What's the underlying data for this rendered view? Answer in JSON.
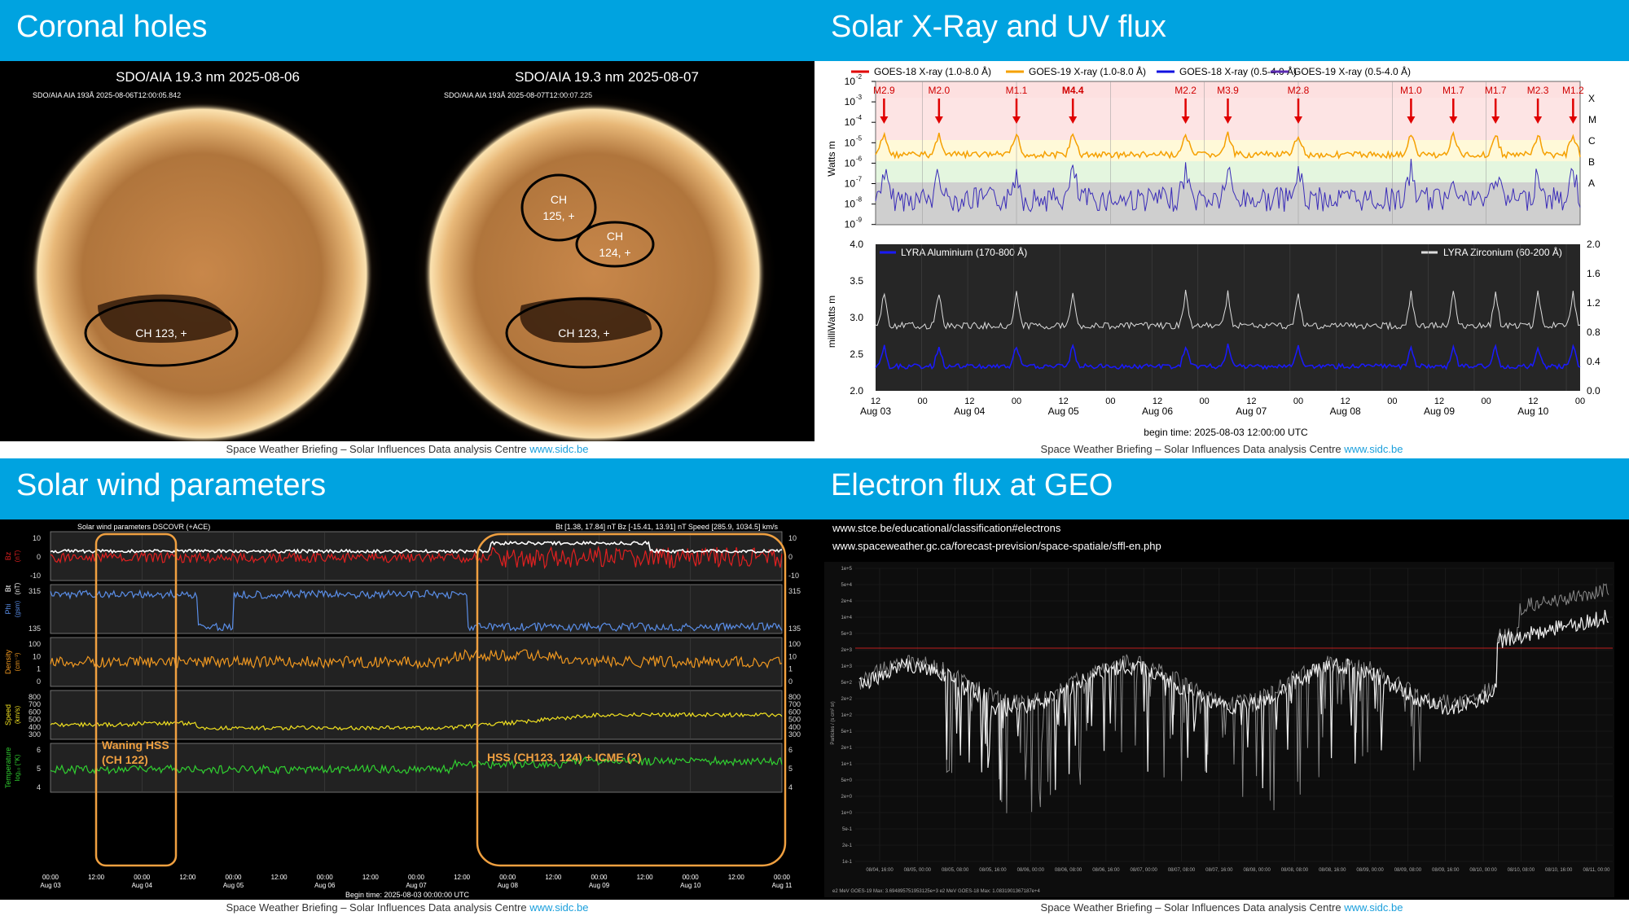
{
  "footer": {
    "text": "Space Weather Briefing – Solar Influences Data analysis Centre ",
    "link": "www.sidc.be"
  },
  "coronal": {
    "title": "Coronal holes",
    "left": {
      "title": "SDO/AIA 19.3 nm 2025-08-06",
      "stamp": "SDO/AIA AIA 193Å 2025-08-06T12:00:05.842",
      "labels": [
        "CH 123, +"
      ]
    },
    "right": {
      "title": "SDO/AIA 19.3 nm 2025-08-07",
      "stamp": "SDO/AIA AIA 193Å 2025-08-07T12:00:07.225",
      "labels": [
        "CH",
        "125, +",
        "CH",
        "124, +",
        "CH 123, +"
      ]
    }
  },
  "xray": {
    "title": "Solar X-Ray and UV flux",
    "legend": [
      "GOES-18 X-ray (1.0-8.0 Å)",
      "GOES-19 X-ray (1.0-8.0 Å)",
      "GOES-18 X-ray (0.5-4.0 Å)",
      "GOES-19 X-ray (0.5-4.0 Å)"
    ],
    "legend_colors": [
      "#e00000",
      "#f5a000",
      "#1010e0",
      "#5a2ab0"
    ],
    "flares": [
      "M2.9",
      "M2.0",
      "M1.1",
      "M4.4",
      "M2.2",
      "M3.9",
      "M2.8",
      "M1.0",
      "M1.7",
      "M1.7",
      "M2.3",
      "M1.2"
    ],
    "flare_x": [
      0.012,
      0.09,
      0.2,
      0.28,
      0.44,
      0.5,
      0.6,
      0.76,
      0.82,
      0.88,
      0.94,
      0.99
    ],
    "classes": [
      "X",
      "M",
      "C",
      "B",
      "A"
    ],
    "ylabel_top": "Watts m",
    "yticks_top": [
      "10",
      "10",
      "10",
      "10",
      "10",
      "10",
      "10",
      "10"
    ],
    "yexp_top": [
      "-2",
      "-3",
      "-4",
      "-5",
      "-6",
      "-7",
      "-8",
      "-9"
    ],
    "lyra_legend": [
      "LYRA Aluminium (170-800 Å)",
      "LYRA Zirconium (60-200 Å)"
    ],
    "ylabel_bottom": "milliWatts m",
    "yticks_left": [
      "4.0",
      "3.5",
      "3.0",
      "2.5",
      "2.0"
    ],
    "yticks_right": [
      "2.0",
      "1.6",
      "1.2",
      "0.8",
      "0.4",
      "0.0"
    ],
    "xticks_hours": [
      "12",
      "00",
      "12",
      "00",
      "12",
      "00",
      "12",
      "00",
      "12",
      "00",
      "12",
      "00",
      "12",
      "00",
      "12",
      "00"
    ],
    "xticks_days": [
      "Aug 03",
      "Aug 04",
      "Aug 05",
      "Aug 06",
      "Aug 07",
      "Aug 08",
      "Aug 09",
      "Aug 10"
    ],
    "begin": "begin time: 2025-08-03 12:00:00 UTC"
  },
  "wind": {
    "title": "Solar wind parameters",
    "plot_title": "Solar wind parameters DSCOVR (+ACE)",
    "ranges": "Bt [1.38, 17.84] nT   Bz [-15.41, 13.91] nT   Speed [285.9, 1034.5] km/s",
    "rows": [
      {
        "l1": "Bz",
        "l2": "(nT)",
        "ticks": [
          "10",
          "0",
          "-10"
        ]
      },
      {
        "l1": "Phi",
        "l2": "(gsm)",
        "ticks": [
          "315",
          "135"
        ]
      },
      {
        "l1": "Density",
        "l2": "(cm⁻³)",
        "ticks": [
          "100",
          "10",
          "1",
          "0"
        ]
      },
      {
        "l1": "Speed",
        "l2": "(km/s)",
        "ticks": [
          "800",
          "700",
          "600",
          "500",
          "400",
          "300"
        ]
      },
      {
        "l1": "Temperature",
        "l2": "log₁₀ (°K)",
        "ticks": [
          "6",
          "5",
          "4"
        ]
      }
    ],
    "bt_label": "Bt",
    "bt_unit": "(nT)",
    "annot1": [
      "Waning HSS",
      "(CH 122)"
    ],
    "annot2": "HSS (CH123, 124) + ICME (?)",
    "xticks": [
      "00:00",
      "12:00",
      "00:00",
      "12:00",
      "00:00",
      "12:00",
      "00:00",
      "12:00",
      "00:00",
      "12:00",
      "00:00",
      "12:00",
      "00:00",
      "12:00",
      "00:00",
      "12:00",
      "00:00"
    ],
    "xdays": [
      "Aug 03",
      "",
      "Aug 04",
      "",
      "Aug 05",
      "",
      "Aug 06",
      "",
      "Aug 07",
      "",
      "Aug 08",
      "",
      "Aug 09",
      "",
      "Aug 10",
      "",
      "Aug 11"
    ],
    "begin": "Begin time: 2025-08-03 00:00:00 UTC"
  },
  "electron": {
    "title": "Electron flux at GEO",
    "url1": "www.stce.be/educational/classification#electrons",
    "url2": "www.spaceweather.gc.ca/forecast-prevision/space-spatiale/sffl-en.php",
    "yticks": [
      "1e+5",
      "5e+4",
      "2e+4",
      "1e+4",
      "5e+3",
      "2e+3",
      "1e+3",
      "5e+2",
      "2e+2",
      "1e+2",
      "5e+1",
      "2e+1",
      "1e+1",
      "5e+0",
      "2e+0",
      "1e+0",
      "5e-1",
      "2e-1",
      "1e-1"
    ],
    "ylabel": "Particles / (s cm² sr)",
    "xticks": [
      "08/04, 16:00",
      "08/05, 00:00",
      "08/05, 08:00",
      "08/05, 16:00",
      "08/06, 00:00",
      "08/06, 08:00",
      "08/06, 16:00",
      "08/07, 00:00",
      "08/07, 08:00",
      "08/07, 16:00",
      "08/08, 00:00",
      "08/08, 08:00",
      "08/08, 16:00",
      "08/09, 00:00",
      "08/09, 08:00",
      "08/09, 16:00",
      "08/10, 00:00",
      "08/10, 08:00",
      "08/10, 16:00",
      "08/11, 00:00"
    ],
    "legend": "e2 MeV GOES-19  Max: 3.694895751953125e+3   e2 MeV GOES-18  Max: 1.0831901367187e+4"
  }
}
